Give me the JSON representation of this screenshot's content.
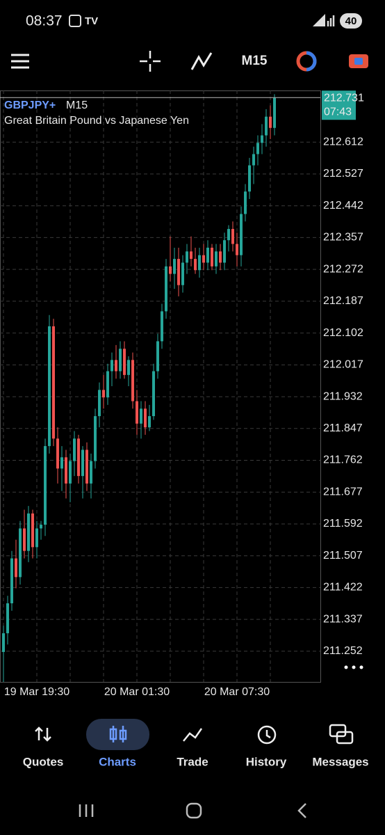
{
  "status_bar": {
    "time": "08:37",
    "battery": "40"
  },
  "toolbar": {
    "timeframe": "M15"
  },
  "chart_data": {
    "type": "candlestick",
    "symbol": "GBPJPY+",
    "timeframe": "M15",
    "description": "Great Britain Pound vs Japanese Yen",
    "categories": [
      null,
      null,
      null,
      null,
      null,
      null,
      null,
      null,
      "19 Mar 19:30",
      null,
      null,
      null,
      null,
      null,
      null,
      null,
      null,
      null,
      null,
      null,
      null,
      null,
      null,
      null,
      null,
      null,
      null,
      null,
      null,
      null,
      null,
      null,
      "20 Mar 01:30",
      null,
      null,
      null,
      null,
      null,
      null,
      null,
      null,
      null,
      null,
      null,
      null,
      null,
      null,
      null,
      null,
      null,
      null,
      null,
      null,
      null,
      null,
      null,
      "20 Mar 07:30",
      null,
      null,
      null,
      null,
      null,
      null,
      null,
      null,
      null
    ],
    "open": [
      211.25,
      211.3,
      211.38,
      211.5,
      211.45,
      211.58,
      211.52,
      211.62,
      211.53,
      211.58,
      211.59,
      211.8,
      212.12,
      211.82,
      211.74,
      211.77,
      211.7,
      211.76,
      211.82,
      211.72,
      211.79,
      211.7,
      211.76,
      211.88,
      211.95,
      211.93,
      212.0,
      212.03,
      212.0,
      212.06,
      211.99,
      212.03,
      211.92,
      211.86,
      211.9,
      211.85,
      211.88,
      212.0,
      212.08,
      212.16,
      212.28,
      212.26,
      212.3,
      212.23,
      212.29,
      212.32,
      212.3,
      212.27,
      212.31,
      212.29,
      212.33,
      212.28,
      212.32,
      212.29,
      212.35,
      212.38,
      212.34,
      212.31,
      212.42,
      212.48,
      212.55,
      212.58,
      212.61,
      212.63,
      212.68,
      212.65
    ],
    "high": [
      211.32,
      211.4,
      211.52,
      211.55,
      211.6,
      211.63,
      211.64,
      211.63,
      211.6,
      211.6,
      211.82,
      212.15,
      212.14,
      211.85,
      211.8,
      211.79,
      211.78,
      211.84,
      211.83,
      211.8,
      211.81,
      211.78,
      211.9,
      211.97,
      211.99,
      212.02,
      212.05,
      212.07,
      212.08,
      212.08,
      212.04,
      212.05,
      211.95,
      211.92,
      211.92,
      211.91,
      212.02,
      212.1,
      212.18,
      212.3,
      212.36,
      212.33,
      212.33,
      212.31,
      212.34,
      212.36,
      212.33,
      212.33,
      212.34,
      212.35,
      212.34,
      212.34,
      212.34,
      212.37,
      212.39,
      212.4,
      212.37,
      212.44,
      212.5,
      212.57,
      212.6,
      212.63,
      212.66,
      212.7,
      212.71,
      212.74
    ],
    "low": [
      211.17,
      211.27,
      211.36,
      211.42,
      211.43,
      211.5,
      211.49,
      211.5,
      211.5,
      211.55,
      211.56,
      211.78,
      211.8,
      211.7,
      211.68,
      211.66,
      211.65,
      211.72,
      211.7,
      211.66,
      211.68,
      211.66,
      211.74,
      211.85,
      211.9,
      211.91,
      211.96,
      211.98,
      211.98,
      211.98,
      211.96,
      211.9,
      211.83,
      211.82,
      211.83,
      211.84,
      211.87,
      211.98,
      212.06,
      212.14,
      212.24,
      212.22,
      212.2,
      212.21,
      212.26,
      212.28,
      212.26,
      212.25,
      212.27,
      212.27,
      212.27,
      212.26,
      212.27,
      212.27,
      212.32,
      212.32,
      212.28,
      212.28,
      212.4,
      212.46,
      212.5,
      212.55,
      212.58,
      212.6,
      212.62,
      212.63
    ],
    "close": [
      211.3,
      211.38,
      211.5,
      211.45,
      211.58,
      211.52,
      211.62,
      211.53,
      211.58,
      211.59,
      211.8,
      212.12,
      211.82,
      211.74,
      211.77,
      211.7,
      211.76,
      211.82,
      211.72,
      211.79,
      211.7,
      211.76,
      211.88,
      211.95,
      211.93,
      212.0,
      212.03,
      212.0,
      212.06,
      211.99,
      212.03,
      211.92,
      211.86,
      211.9,
      211.85,
      211.88,
      212.0,
      212.08,
      212.16,
      212.28,
      212.26,
      212.3,
      212.23,
      212.29,
      212.32,
      212.3,
      212.27,
      212.31,
      212.29,
      212.33,
      212.28,
      212.32,
      212.29,
      212.35,
      212.38,
      212.34,
      212.31,
      212.42,
      212.48,
      212.55,
      212.58,
      212.61,
      212.63,
      212.68,
      212.65,
      212.73
    ],
    "up_color": "#26a69a",
    "down_color": "#ef5350",
    "current_price": 212.731,
    "countdown": "07:43",
    "ylim": [
      211.17,
      212.75
    ],
    "yticks": [
      212.612,
      212.527,
      212.442,
      212.357,
      212.272,
      212.187,
      212.102,
      212.017,
      211.932,
      211.847,
      211.762,
      211.677,
      211.592,
      211.507,
      211.422,
      211.337,
      211.252
    ],
    "grid": true
  },
  "nav": {
    "items": [
      "Quotes",
      "Charts",
      "Trade",
      "History",
      "Messages"
    ],
    "active": 1
  }
}
